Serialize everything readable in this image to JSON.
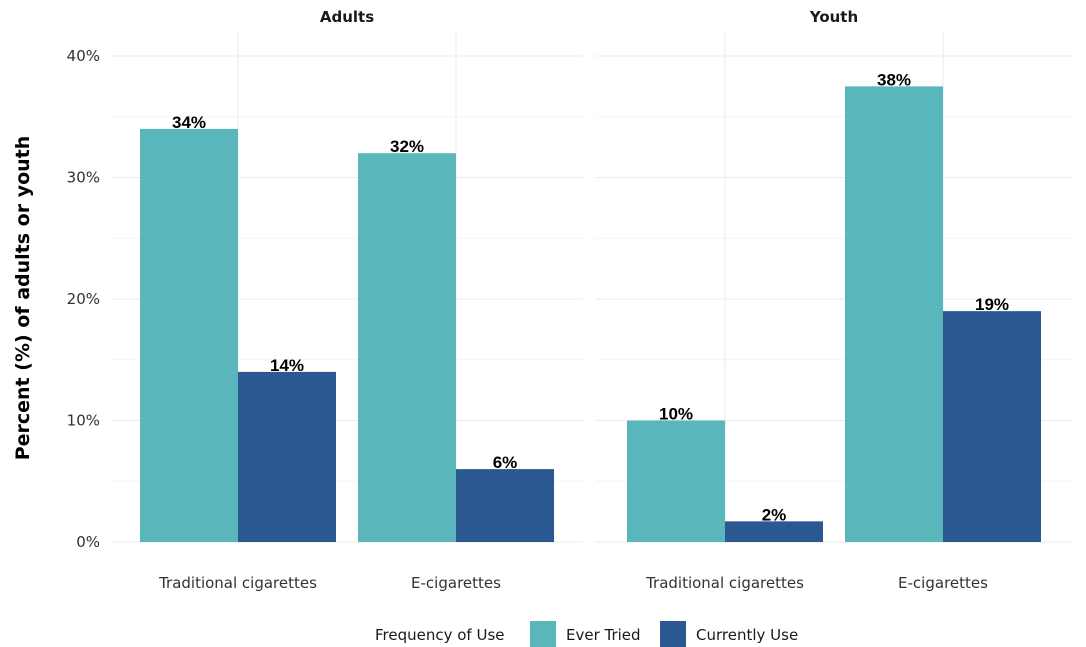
{
  "chart_data": {
    "type": "bar",
    "ylabel": "Percent (%) of adults or youth",
    "xlabel": "",
    "ylim": [
      0,
      42
    ],
    "yticks": [
      0,
      10,
      20,
      30,
      40
    ],
    "ytick_labels": [
      "0%",
      "10%",
      "20%",
      "30%",
      "40%"
    ],
    "grid": true,
    "legend": {
      "title": "Frequency of Use",
      "placement": "bottom"
    },
    "colors": {
      "Ever Tried": "#59b6bb",
      "Currently Use": "#2c5892"
    },
    "panels": [
      {
        "title": "Adults",
        "categories": [
          "Traditional cigarettes",
          "E-cigarettes"
        ],
        "series": [
          {
            "name": "Ever Tried",
            "values": [
              34,
              32
            ],
            "labels": [
              "34%",
              "32%"
            ]
          },
          {
            "name": "Currently Use",
            "values": [
              14,
              6
            ],
            "labels": [
              "14%",
              "6%"
            ]
          }
        ]
      },
      {
        "title": "Youth",
        "categories": [
          "Traditional cigarettes",
          "E-cigarettes"
        ],
        "series": [
          {
            "name": "Ever Tried",
            "values": [
              10,
              37.5
            ],
            "labels": [
              "10%",
              "38%"
            ]
          },
          {
            "name": "Currently Use",
            "values": [
              1.7,
              19
            ],
            "labels": [
              "2%",
              "19%"
            ]
          }
        ]
      }
    ]
  }
}
